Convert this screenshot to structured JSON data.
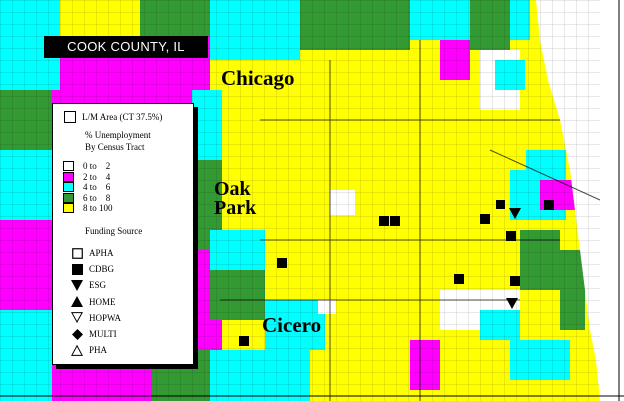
{
  "title": "COOK COUNTY, IL",
  "places": {
    "chicago": "Chicago",
    "oak_park": "Oak Park",
    "cicero": "Cicero"
  },
  "legend": {
    "lm_area": "L/M Area (CT 37.5%)",
    "unemployment_header_1": "% Unemployment",
    "unemployment_header_2": "By Census Tract",
    "classes": [
      {
        "label": "0 to    2",
        "color": "#ffffff"
      },
      {
        "label": "2 to    4",
        "color": "#ff00ff"
      },
      {
        "label": "4 to    6",
        "color": "#00ffff"
      },
      {
        "label": "6 to    8",
        "color": "#339933"
      },
      {
        "label": "8 to 100",
        "color": "#ffff00"
      }
    ],
    "funding_header": "Funding Source",
    "funding": [
      {
        "label": "APHA",
        "symbol": "hollow-square"
      },
      {
        "label": "CDBG",
        "symbol": "filled-square"
      },
      {
        "label": "ESG",
        "symbol": "filled-triangle-down"
      },
      {
        "label": "HOME",
        "symbol": "filled-triangle-up"
      },
      {
        "label": "HOPWA",
        "symbol": "hollow-triangle-down"
      },
      {
        "label": "MULTI",
        "symbol": "filled-diamond"
      },
      {
        "label": "PHA",
        "symbol": "hollow-triangle-up"
      }
    ]
  },
  "colors": {
    "lake": "#ffffff",
    "road": "#000000"
  }
}
